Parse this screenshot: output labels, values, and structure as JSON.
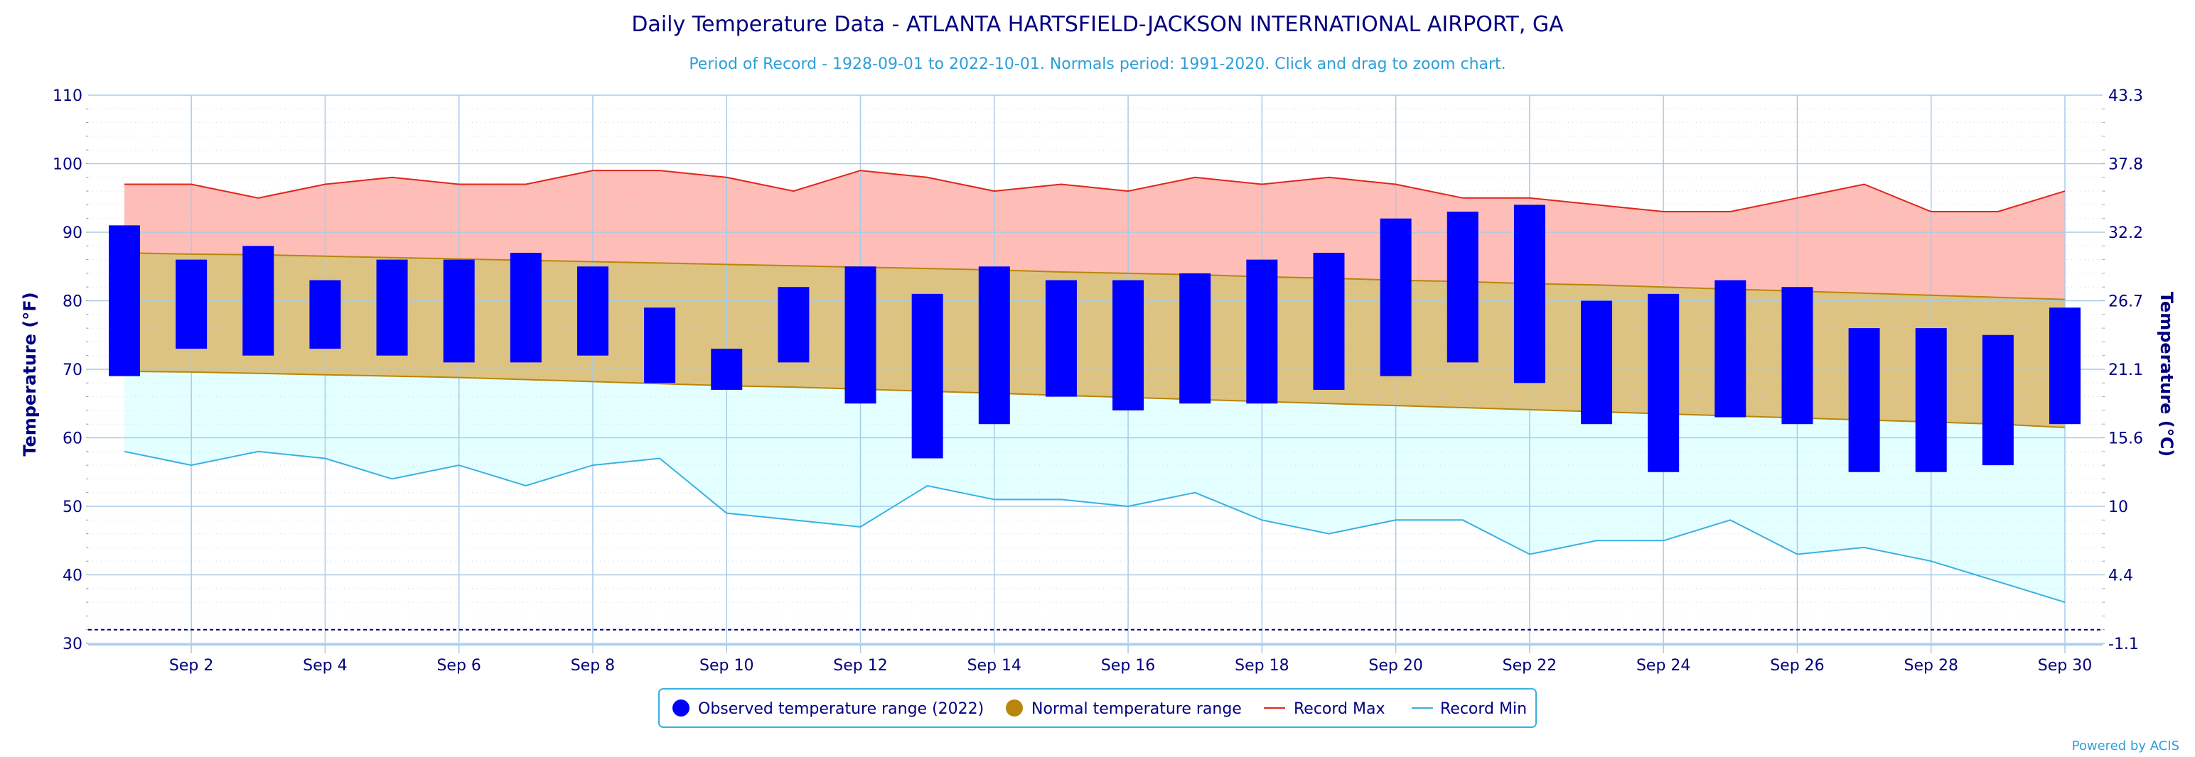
{
  "chart_data": {
    "type": "bar",
    "title": "Daily Temperature Data - ATLANTA HARTSFIELD-JACKSON INTERNATIONAL AIRPORT, GA",
    "subtitle": "Period of Record - 1928-09-01 to 2022-10-01. Normals period: 1991-2020. Click and drag to zoom chart.",
    "ylabel_left": "Temperature (°F)",
    "ylabel_right": "Temperature (°C)",
    "ylim": [
      30,
      110
    ],
    "left_ticks": [
      "30",
      "40",
      "50",
      "60",
      "70",
      "80",
      "90",
      "100",
      "110"
    ],
    "right_ticks": [
      "-1.1",
      "4.4",
      "10",
      "15.6",
      "21.1",
      "26.7",
      "32.2",
      "37.8",
      "43.3"
    ],
    "x_tick_labels": [
      "Sep 2",
      "Sep 4",
      "Sep 6",
      "Sep 8",
      "Sep 10",
      "Sep 12",
      "Sep 14",
      "Sep 16",
      "Sep 18",
      "Sep 20",
      "Sep 22",
      "Sep 24",
      "Sep 26",
      "Sep 28",
      "Sep 30"
    ],
    "x_tick_days": [
      2,
      4,
      6,
      8,
      10,
      12,
      14,
      16,
      18,
      20,
      22,
      24,
      26,
      28,
      30
    ],
    "days": [
      1,
      2,
      3,
      4,
      5,
      6,
      7,
      8,
      9,
      10,
      11,
      12,
      13,
      14,
      15,
      16,
      17,
      18,
      19,
      20,
      21,
      22,
      23,
      24,
      25,
      26,
      27,
      28,
      29,
      30
    ],
    "series": [
      {
        "name": "Observed temperature range (2022)",
        "color": "#0000ff",
        "high": [
          91,
          86,
          88,
          83,
          86,
          86,
          87,
          85,
          79,
          73,
          82,
          85,
          81,
          85,
          83,
          83,
          84,
          86,
          87,
          92,
          93,
          94,
          80,
          81,
          83,
          82,
          76,
          76,
          75,
          79
        ],
        "low": [
          69,
          73,
          72,
          73,
          72,
          71,
          71,
          72,
          68,
          67,
          71,
          65,
          57,
          62,
          66,
          64,
          65,
          65,
          67,
          69,
          71,
          68,
          62,
          55,
          63,
          62,
          55,
          55,
          56,
          62
        ]
      },
      {
        "name": "Normal temperature range",
        "color": "#b8860b",
        "high": [
          87,
          86.8,
          86.7,
          86.5,
          86.3,
          86.1,
          85.9,
          85.7,
          85.5,
          85.3,
          85.1,
          84.9,
          84.7,
          84.5,
          84.2,
          84,
          83.8,
          83.5,
          83.3,
          83,
          82.8,
          82.5,
          82.3,
          82,
          81.7,
          81.4,
          81.1,
          80.8,
          80.5,
          80.2
        ],
        "low": [
          69.7,
          69.6,
          69.4,
          69.2,
          69,
          68.8,
          68.5,
          68.2,
          67.9,
          67.6,
          67.4,
          67.1,
          66.8,
          66.5,
          66.2,
          65.9,
          65.6,
          65.3,
          65,
          64.7,
          64.4,
          64.1,
          63.8,
          63.5,
          63.2,
          62.9,
          62.6,
          62.3,
          62,
          61.5
        ]
      },
      {
        "name": "Record Max",
        "color": "#e0251b",
        "values": [
          97,
          97,
          95,
          97,
          98,
          97,
          97,
          99,
          99,
          98,
          96,
          99,
          98,
          96,
          97,
          96,
          98,
          97,
          98,
          97,
          95,
          95,
          94,
          93,
          93,
          95,
          97,
          93,
          93,
          96
        ]
      },
      {
        "name": "Record Min",
        "color": "#3ab0e2",
        "values": [
          58,
          56,
          58,
          57,
          54,
          56,
          53,
          56,
          57,
          49,
          48,
          47,
          53,
          51,
          51,
          50,
          52,
          48,
          46,
          48,
          48,
          43,
          45,
          45,
          48,
          43,
          44,
          42,
          39,
          36
        ]
      }
    ],
    "freezing_line": 32,
    "legend_position": "bottom-center",
    "grid": true
  },
  "legend": [
    {
      "label": "Observed temperature range (2022)",
      "symbol": "dot",
      "color": "#0000ff"
    },
    {
      "label": "Normal temperature range",
      "symbol": "dot",
      "color": "#b8860b"
    },
    {
      "label": "Record Max",
      "symbol": "line",
      "color": "#e0251b"
    },
    {
      "label": "Record Min",
      "symbol": "line",
      "color": "#3ab0e2"
    }
  ],
  "credit": "Powered by ACIS",
  "colors": {
    "record_max_fill": "#ffbdb8",
    "normal_fill": "#dcc382",
    "record_min_fill": "#e3ffff",
    "grid": "#a8cbe8",
    "axis_text": "#000080"
  }
}
